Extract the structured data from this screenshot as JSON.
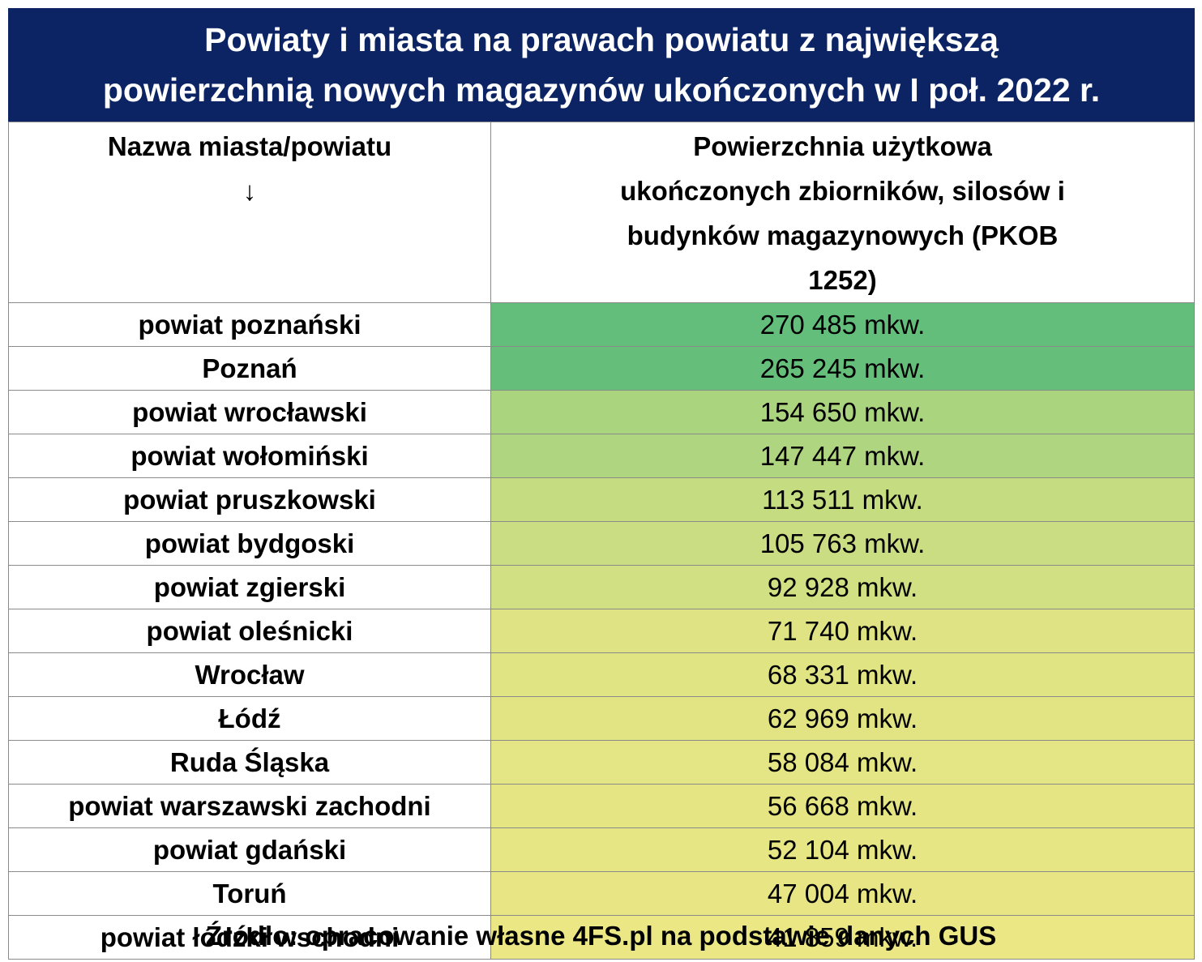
{
  "title": {
    "line1": "Powiaty i miasta na prawach powiatu z największą",
    "line2": "powierzchnią nowych magazynów ukończonych w I poł. 2022 r."
  },
  "header": {
    "col1_label": "Nazwa miasta/powiatu",
    "col1_arrow": "↓",
    "col2_label": "Powierzchnia użytkowa ukończonych zbiorników, silosów i budynków magazynowych (PKOB 1252)"
  },
  "source": "Źródło: opracowanie własne 4FS.pl na podstawie danych GUS",
  "chart_data": {
    "type": "table",
    "columns": [
      "Nazwa miasta/powiatu",
      "Powierzchnia użytkowa ukończonych zbiorników, silosów i budynków magazynowych (PKOB 1252)"
    ],
    "unit": "mkw.",
    "rows": [
      {
        "name": "powiat poznański",
        "value": 270485,
        "display": "270 485 mkw.",
        "color": "#63be7b"
      },
      {
        "name": "Poznań",
        "value": 265245,
        "display": "265 245 mkw.",
        "color": "#65bf7b"
      },
      {
        "name": "powiat wrocławski",
        "value": 154650,
        "display": "154 650 mkw.",
        "color": "#abd47f"
      },
      {
        "name": "powiat wołomiński",
        "value": 147447,
        "display": "147 447 mkw.",
        "color": "#afd580"
      },
      {
        "name": "powiat pruszkowski",
        "value": 113511,
        "display": "113 511 mkw.",
        "color": "#c5dc81"
      },
      {
        "name": "powiat bydgoski",
        "value": 105763,
        "display": "105 763 mkw.",
        "color": "#cadd82"
      },
      {
        "name": "powiat zgierski",
        "value": 92928,
        "display": "92 928 mkw.",
        "color": "#d1e082"
      },
      {
        "name": "powiat oleśnicki",
        "value": 71740,
        "display": "71 740 mkw.",
        "color": "#dfe383"
      },
      {
        "name": "Wrocław",
        "value": 68331,
        "display": "68 331 mkw.",
        "color": "#e0e483"
      },
      {
        "name": "Łódź",
        "value": 62969,
        "display": "62 969 mkw.",
        "color": "#e2e483"
      },
      {
        "name": "Ruda Śląska",
        "value": 58084,
        "display": "58 084 mkw.",
        "color": "#e4e584"
      },
      {
        "name": "powiat warszawski zachodni",
        "value": 56668,
        "display": "56 668 mkw.",
        "color": "#e5e584"
      },
      {
        "name": "powiat gdański",
        "value": 52104,
        "display": "52 104 mkw.",
        "color": "#e6e684"
      },
      {
        "name": "Toruń",
        "value": 47004,
        "display": "47 004 mkw.",
        "color": "#e8e684"
      },
      {
        "name": "powiat łódzki wschodni",
        "value": 41859,
        "display": "41 859 mkw.",
        "color": "#eae784"
      }
    ]
  }
}
